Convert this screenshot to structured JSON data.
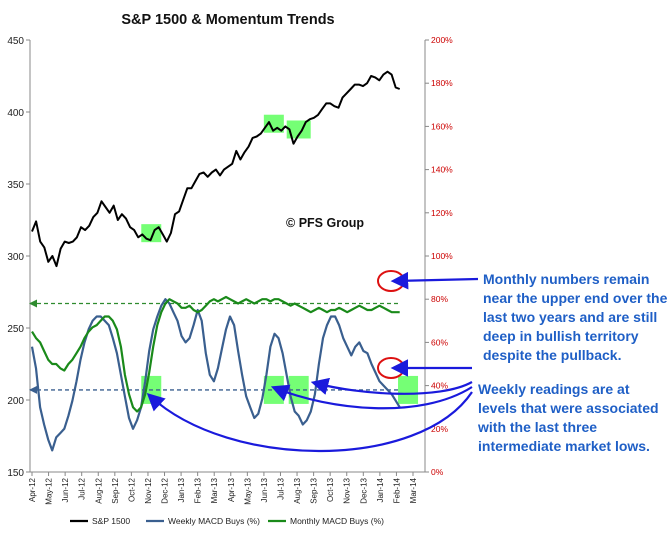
{
  "chart_data": {
    "type": "line",
    "title": "S&P 1500 & Momentum Trends",
    "watermark": "© PFS Group",
    "x_tick_labels": [
      "Apr-12",
      "May-12",
      "Jun-12",
      "Jul-12",
      "Aug-12",
      "Sep-12",
      "Oct-12",
      "Nov-12",
      "Dec-12",
      "Jan-13",
      "Feb-13",
      "Mar-13",
      "Apr-13",
      "May-13",
      "Jun-13",
      "Jul-13",
      "Aug-13",
      "Sep-13",
      "Oct-13",
      "Nov-13",
      "Dec-13",
      "Jan-14",
      "Feb-14",
      "Mar-14"
    ],
    "y_left": {
      "min": 150,
      "max": 450,
      "ticks": [
        150,
        200,
        250,
        300,
        350,
        400,
        450
      ]
    },
    "y_right": {
      "min": 0,
      "max": 200,
      "ticks": [
        "0%",
        "20%",
        "40%",
        "60%",
        "80%",
        "100%",
        "120%",
        "140%",
        "160%",
        "180%",
        "200%"
      ]
    },
    "grid": false,
    "legend_position": "bottom",
    "series": [
      {
        "name": "S&P 1500",
        "axis": "left",
        "color": "#000000",
        "values": [
          317,
          324,
          310,
          306,
          296,
          300,
          293,
          305,
          310,
          309,
          310,
          313,
          320,
          318,
          321,
          327,
          330,
          338,
          334,
          330,
          335,
          325,
          329,
          326,
          320,
          318,
          313,
          315,
          312,
          311,
          318,
          320,
          315,
          310,
          316,
          329,
          331,
          339,
          347,
          347,
          352,
          357,
          358,
          355,
          358,
          360,
          356,
          360,
          362,
          364,
          373,
          367,
          372,
          376,
          382,
          383,
          385,
          389,
          393,
          387,
          389,
          387,
          390,
          388,
          378,
          383,
          387,
          393,
          395,
          396,
          398,
          402,
          406,
          406,
          404,
          403,
          410,
          413,
          416,
          419,
          419,
          418,
          420,
          425,
          424,
          422,
          426,
          428,
          426,
          417,
          416
        ],
        "highlight_months": [
          7.2,
          14.6,
          16.1
        ],
        "data_note": "weekly closes, Apr-12 to Feb-14"
      },
      {
        "name": "Weekly MACD Buys (%)",
        "axis": "right",
        "color": "#3a5f8f",
        "values": [
          58,
          48,
          30,
          22,
          15,
          10,
          16,
          18,
          20,
          26,
          33,
          42,
          52,
          60,
          66,
          70,
          72,
          72,
          70,
          68,
          62,
          55,
          45,
          35,
          25,
          20,
          24,
          30,
          42,
          56,
          66,
          72,
          77,
          80,
          78,
          74,
          70,
          63,
          60,
          62,
          68,
          75,
          70,
          55,
          45,
          42,
          48,
          57,
          66,
          72,
          68,
          56,
          45,
          35,
          30,
          25,
          27,
          34,
          45,
          58,
          64,
          62,
          55,
          45,
          35,
          28,
          26,
          22,
          24,
          28,
          36,
          50,
          62,
          68,
          72,
          72,
          68,
          62,
          58,
          54,
          58,
          60,
          56,
          55,
          50,
          46,
          42,
          40,
          38,
          36,
          33,
          30
        ],
        "data_note": "% readings, Apr-12 to Feb-14"
      },
      {
        "name": "Monthly MACD Buys (%)",
        "axis": "right",
        "color": "#1a8a1a",
        "values": [
          65,
          62,
          60,
          56,
          52,
          50,
          50,
          48,
          47,
          50,
          52,
          55,
          58,
          62,
          65,
          67,
          68,
          70,
          72,
          72,
          70,
          66,
          58,
          45,
          36,
          30,
          28,
          30,
          36,
          46,
          58,
          68,
          74,
          78,
          80,
          79,
          78,
          76,
          76,
          77,
          75,
          74,
          75,
          77,
          79,
          80,
          79,
          80,
          81,
          80,
          79,
          78,
          79,
          80,
          79,
          78,
          79,
          80,
          80,
          79,
          80,
          80,
          79,
          78,
          77,
          78,
          77,
          76,
          75,
          74,
          75,
          76,
          75,
          74,
          75,
          75,
          76,
          75,
          74,
          75,
          76,
          77,
          76,
          75,
          75,
          76,
          77,
          76,
          75,
          74,
          74,
          74
        ],
        "data_note": "% readings, Apr-12 to Feb-14"
      }
    ],
    "reference_lines": [
      {
        "axis": "right",
        "value": 78,
        "color": "#2e8b2e",
        "style": "dashed"
      },
      {
        "axis": "right",
        "value": 38,
        "color": "#3a5f8f",
        "style": "dashed"
      }
    ],
    "green_boxes_weekly": [
      7.2,
      14.6,
      16.1,
      22.7
    ],
    "annotations": [
      "Monthly numbers remain near the upper end over the last two years and are still deep in bullish territory despite the pullback.",
      "Weekly readings are at levels that were associated with the last three intermediate market lows."
    ]
  },
  "colors": {
    "accent": "#1f5fc6",
    "right_axis": "#cc0000",
    "highlight": "#66ff66",
    "circle": "#dd1111"
  }
}
